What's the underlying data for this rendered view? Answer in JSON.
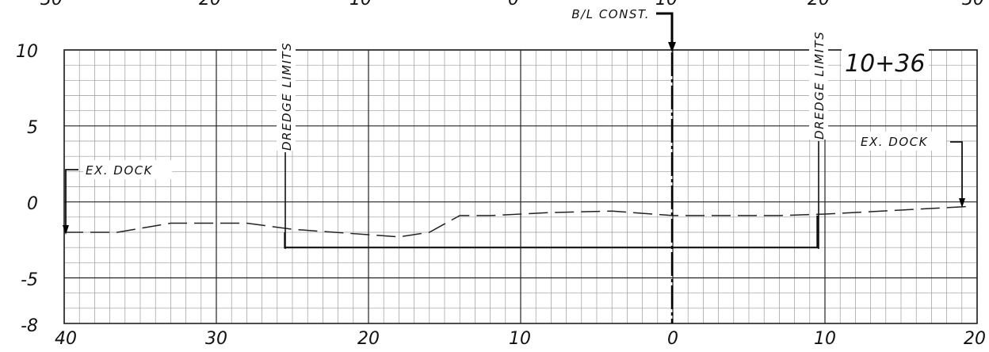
{
  "top_axis_labels": [
    "30",
    "20",
    "10",
    "0",
    "10",
    "20",
    "30"
  ],
  "bottom_axis_labels": [
    "40",
    "30",
    "20",
    "10",
    "0",
    "10",
    "20"
  ],
  "y_axis_labels": [
    "10",
    "5",
    "0",
    "-5",
    "-8"
  ],
  "station_label": "10+36",
  "baseline_label": "B/L CONST.",
  "dredge_limit_left_label": "DREDGE LIMITS",
  "dredge_limit_right_label": "DREDGE LIMITS",
  "ex_dock_left_label": "EX. DOCK",
  "ex_dock_right_label": "EX. DOCK",
  "chart_data": {
    "type": "line",
    "x_range": [
      -40,
      20
    ],
    "y_range": [
      -8,
      10
    ],
    "grid": true,
    "existing_ground": {
      "style": "dashed",
      "x": [
        -40,
        -36.5,
        -33,
        -30,
        -28,
        -25,
        -18,
        -16,
        -14,
        -12,
        -8,
        -4,
        0,
        3,
        7,
        10,
        19.5
      ],
      "y": [
        -2.0,
        -2.0,
        -1.4,
        -1.4,
        -1.4,
        -1.8,
        -2.3,
        -2.0,
        -0.9,
        -0.9,
        -0.7,
        -0.6,
        -0.9,
        -0.9,
        -0.9,
        -0.8,
        -0.3
      ]
    },
    "dredge_template": {
      "style": "solid",
      "x": [
        -25.5,
        -25.5,
        9.5,
        9.5
      ],
      "y": [
        -2.0,
        -3.0,
        -3.0,
        -0.9
      ]
    },
    "baseline_x": 0,
    "dredge_limits_x": [
      -25.5,
      9.5
    ],
    "ex_dock_x": [
      -40,
      19.5
    ]
  }
}
